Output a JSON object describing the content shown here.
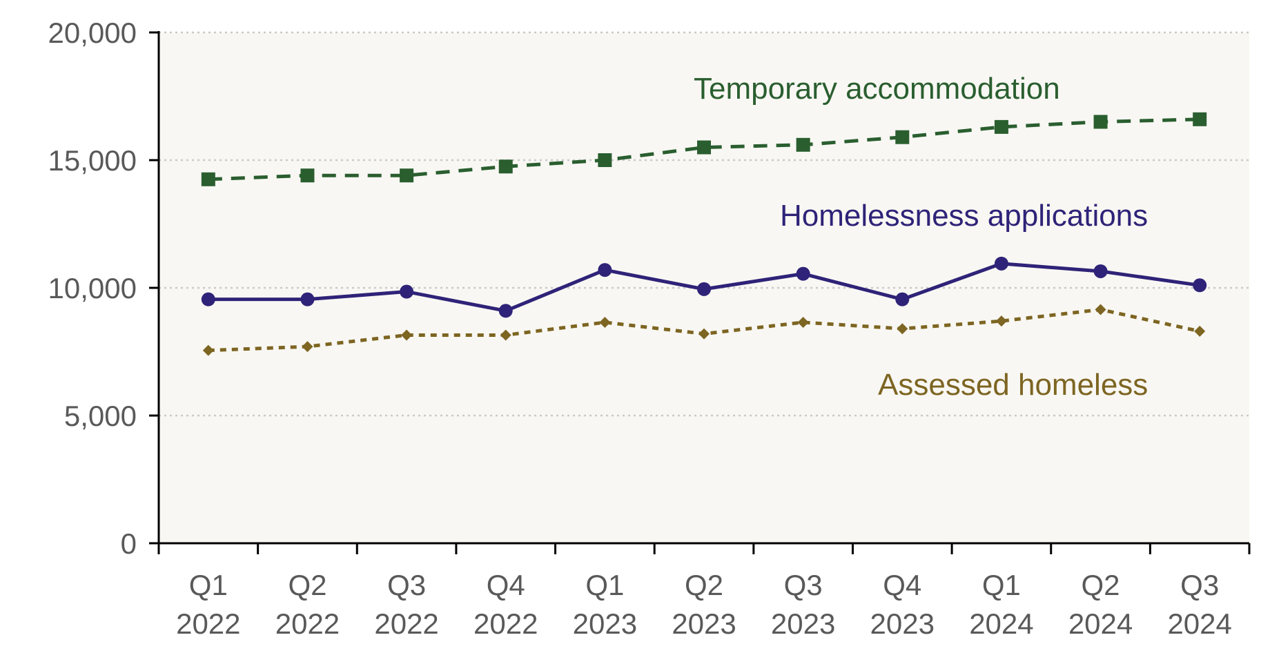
{
  "chart_data": {
    "type": "line",
    "title": "",
    "xlabel": "",
    "ylabel": "",
    "ylim": [
      0,
      20000
    ],
    "yticks": [
      0,
      5000,
      10000,
      15000,
      20000
    ],
    "ytick_labels": [
      "0",
      "5,000",
      "10,000",
      "15,000",
      "20,000"
    ],
    "grid": true,
    "legend": "inline labels",
    "categories": [
      {
        "quarter": "Q1",
        "year": "2022"
      },
      {
        "quarter": "Q2",
        "year": "2022"
      },
      {
        "quarter": "Q3",
        "year": "2022"
      },
      {
        "quarter": "Q4",
        "year": "2022"
      },
      {
        "quarter": "Q1",
        "year": "2023"
      },
      {
        "quarter": "Q2",
        "year": "2023"
      },
      {
        "quarter": "Q3",
        "year": "2023"
      },
      {
        "quarter": "Q4",
        "year": "2023"
      },
      {
        "quarter": "Q1",
        "year": "2024"
      },
      {
        "quarter": "Q2",
        "year": "2024"
      },
      {
        "quarter": "Q3",
        "year": "2024"
      }
    ],
    "series": [
      {
        "name": "Temporary accommodation",
        "color": "#2a5e2f",
        "line_style": "dashed",
        "marker": "square",
        "values": [
          14250,
          14400,
          14400,
          14750,
          15000,
          15500,
          15600,
          15900,
          16300,
          16500,
          16600
        ]
      },
      {
        "name": "Homelessness applications",
        "color": "#2e2378",
        "line_style": "solid",
        "marker": "circle",
        "values": [
          9550,
          9550,
          9850,
          9100,
          10700,
          9950,
          10550,
          9550,
          10950,
          10650,
          10100
        ]
      },
      {
        "name": "Assessed homeless",
        "color": "#7d6522",
        "line_style": "dotted",
        "marker": "diamond",
        "values": [
          7550,
          7700,
          8150,
          8150,
          8650,
          8200,
          8650,
          8400,
          8700,
          9150,
          8300
        ]
      }
    ]
  }
}
